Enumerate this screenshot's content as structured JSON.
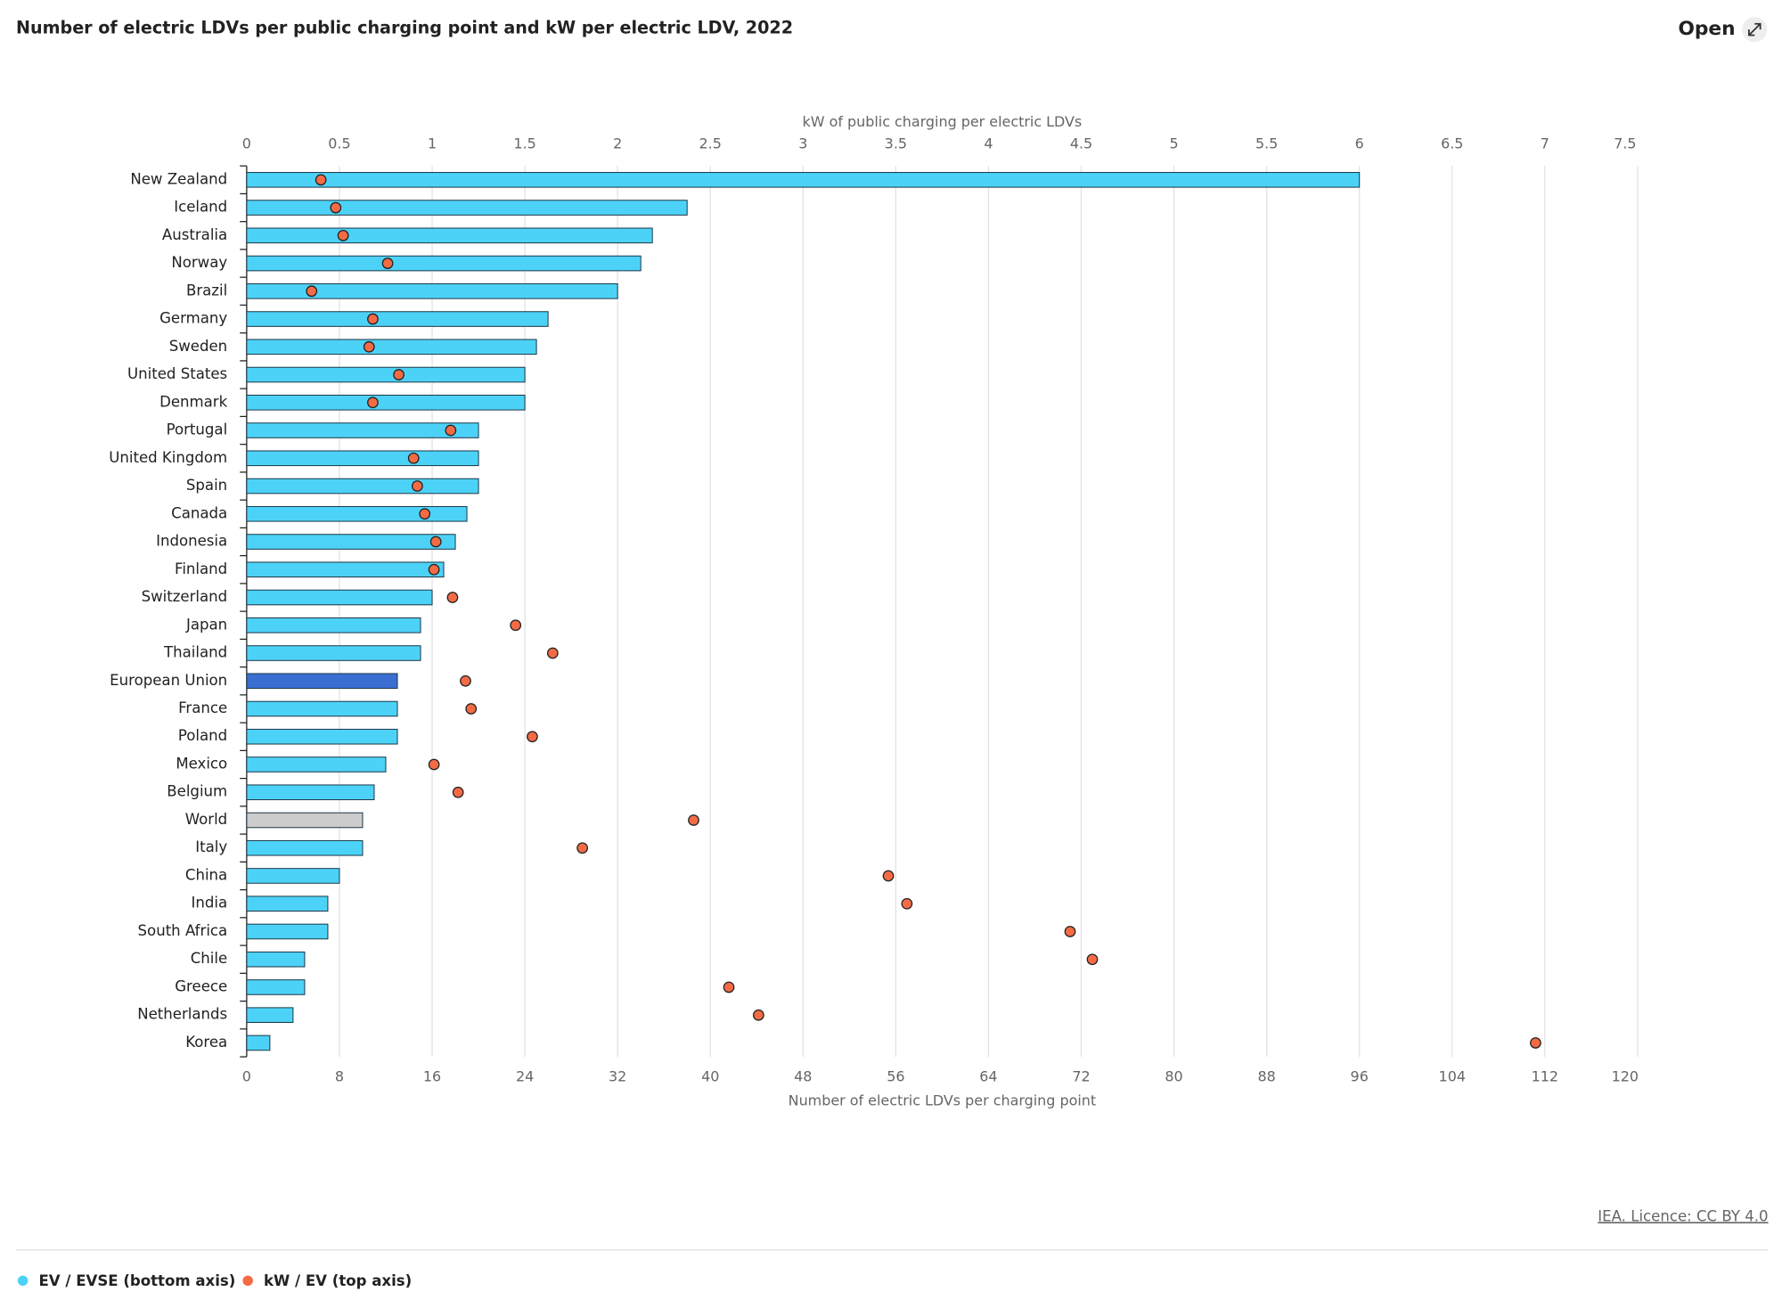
{
  "open_button": "Open",
  "chart_data": {
    "type": "bar-dot",
    "title": "Number of electric LDVs per public charging point and kW per electric LDV, 2022",
    "source": "IEA. Licence: CC BY 4.0",
    "x_label": "Number of electric LDVs per charging point",
    "x2_label": "kW of public charging per electric LDVs",
    "categories": [
      "New Zealand",
      "Iceland",
      "Australia",
      "Norway",
      "Brazil",
      "Germany",
      "Sweden",
      "United States",
      "Denmark",
      "Portugal",
      "United Kingdom",
      "Spain",
      "Canada",
      "Indonesia",
      "Finland",
      "Switzerland",
      "Japan",
      "Thailand",
      "European Union",
      "France",
      "Poland",
      "Mexico",
      "Belgium",
      "World",
      "Italy",
      "China",
      "India",
      "South Africa",
      "Chile",
      "Greece",
      "Netherlands",
      "Korea"
    ],
    "series": [
      {
        "name": "EV / EVSE (bottom axis)",
        "color": "#4dd2f7",
        "bar_colors": [
          "#4dd2f7",
          "#4dd2f7",
          "#4dd2f7",
          "#4dd2f7",
          "#4dd2f7",
          "#4dd2f7",
          "#4dd2f7",
          "#4dd2f7",
          "#4dd2f7",
          "#4dd2f7",
          "#4dd2f7",
          "#4dd2f7",
          "#4dd2f7",
          "#4dd2f7",
          "#4dd2f7",
          "#4dd2f7",
          "#4dd2f7",
          "#4dd2f7",
          "#3a6fd1",
          "#4dd2f7",
          "#4dd2f7",
          "#4dd2f7",
          "#4dd2f7",
          "#cccccc",
          "#4dd2f7",
          "#4dd2f7",
          "#4dd2f7",
          "#4dd2f7",
          "#4dd2f7",
          "#4dd2f7",
          "#4dd2f7",
          "#4dd2f7"
        ],
        "values": [
          96,
          38,
          35,
          34,
          32,
          26,
          25,
          24,
          24,
          20,
          20,
          20,
          19,
          18,
          17,
          16,
          15,
          15,
          13,
          13,
          13,
          12,
          11,
          10,
          10,
          8,
          7,
          7,
          5,
          5,
          4,
          2
        ]
      },
      {
        "name": "kW / EV (top axis)",
        "color": "#f26b45",
        "axis": "x2",
        "values": [
          0.4,
          0.48,
          0.52,
          0.76,
          0.35,
          0.68,
          0.66,
          0.82,
          0.68,
          1.1,
          0.9,
          0.92,
          0.96,
          1.02,
          1.01,
          1.11,
          1.45,
          1.65,
          1.18,
          1.21,
          1.54,
          1.01,
          1.14,
          2.41,
          1.81,
          3.46,
          3.56,
          4.44,
          4.56,
          2.6,
          2.76,
          6.95
        ]
      }
    ],
    "xlim": [
      0,
      120
    ],
    "xticks": [
      0,
      8,
      16,
      24,
      32,
      40,
      48,
      56,
      64,
      72,
      80,
      88,
      96,
      104,
      112,
      120
    ],
    "x2lim": [
      0,
      7.5
    ],
    "x2ticks": [
      0,
      0.5,
      1,
      1.5,
      2,
      2.5,
      3,
      3.5,
      4,
      4.5,
      5,
      5.5,
      6,
      6.5,
      7,
      7.5
    ],
    "grid": true
  }
}
